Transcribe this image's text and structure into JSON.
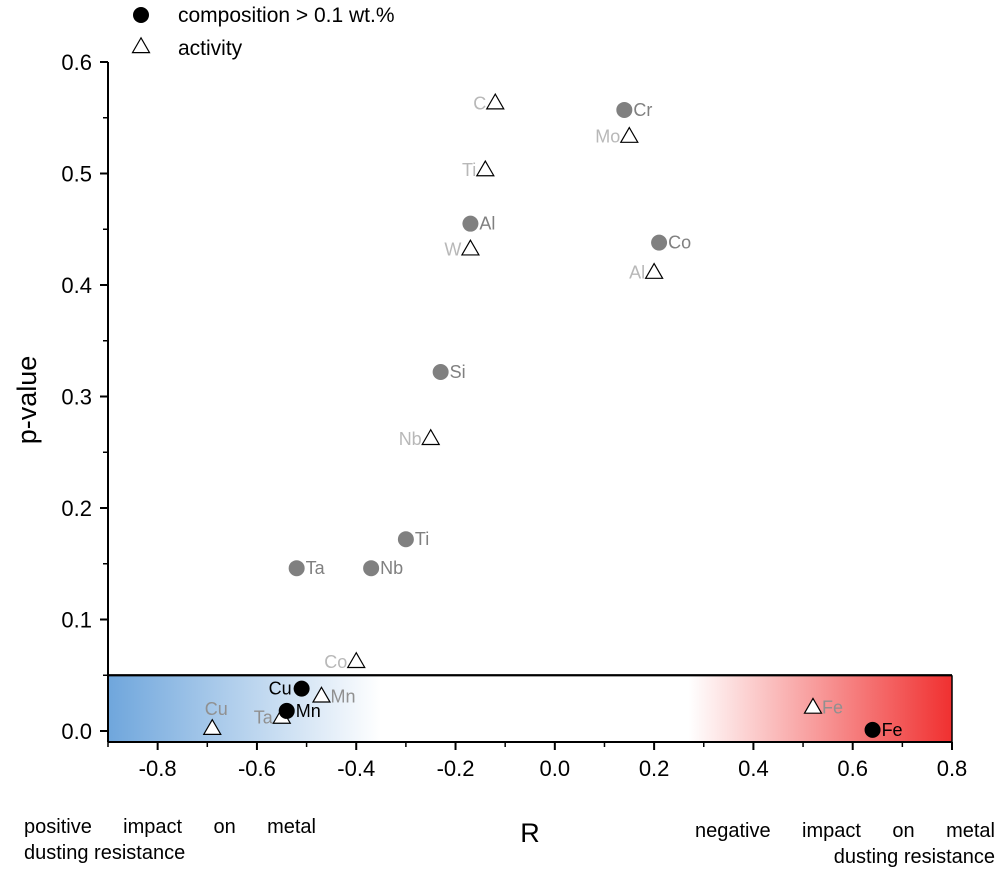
{
  "chart_data": {
    "type": "scatter",
    "xlabel": "R",
    "ylabel": "p-value",
    "xlim": [
      -0.9,
      0.8
    ],
    "ylim": [
      -0.01,
      0.6
    ],
    "xticks": [
      -0.8,
      -0.6,
      -0.4,
      -0.2,
      0.0,
      0.2,
      0.4,
      0.6,
      0.8
    ],
    "xtick_labels": [
      "-0.8",
      "-0.6",
      "-0.4",
      "-0.2",
      "0.0",
      "0.2",
      "0.4",
      "0.6",
      "0.8"
    ],
    "yticks": [
      0.0,
      0.1,
      0.2,
      0.3,
      0.4,
      0.5,
      0.6
    ],
    "ytick_labels": [
      "0.0",
      "0.1",
      "0.2",
      "0.3",
      "0.4",
      "0.5",
      "0.6"
    ],
    "significance_threshold": 0.05,
    "legend": {
      "placement": "top-left",
      "entries": [
        {
          "marker": "circle",
          "label": "composition > 0.1 wt.%"
        },
        {
          "marker": "triangle",
          "label": "activity"
        }
      ]
    },
    "series": [
      {
        "name": "composition > 0.1 wt.%",
        "marker": "circle",
        "points": [
          {
            "label": "Cr",
            "x": 0.14,
            "y": 0.557,
            "significant": false
          },
          {
            "label": "Co",
            "x": 0.21,
            "y": 0.438,
            "significant": false
          },
          {
            "label": "Al",
            "x": -0.17,
            "y": 0.455,
            "significant": false
          },
          {
            "label": "Si",
            "x": -0.23,
            "y": 0.322,
            "significant": false
          },
          {
            "label": "Ti",
            "x": -0.3,
            "y": 0.172,
            "significant": false
          },
          {
            "label": "Nb",
            "x": -0.37,
            "y": 0.146,
            "significant": false
          },
          {
            "label": "Ta",
            "x": -0.52,
            "y": 0.146,
            "significant": false
          },
          {
            "label": "Cu",
            "x": -0.51,
            "y": 0.038,
            "significant": true
          },
          {
            "label": "Mn",
            "x": -0.54,
            "y": 0.018,
            "significant": true
          },
          {
            "label": "Fe",
            "x": 0.64,
            "y": 0.001,
            "significant": true
          }
        ]
      },
      {
        "name": "activity",
        "marker": "triangle",
        "points": [
          {
            "label": "C",
            "x": -0.12,
            "y": 0.563,
            "significant": false
          },
          {
            "label": "Mo",
            "x": 0.15,
            "y": 0.533,
            "significant": false
          },
          {
            "label": "Ti",
            "x": -0.14,
            "y": 0.503,
            "significant": false
          },
          {
            "label": "W",
            "x": -0.17,
            "y": 0.432,
            "significant": false
          },
          {
            "label": "Al",
            "x": 0.2,
            "y": 0.411,
            "significant": false
          },
          {
            "label": "Nb",
            "x": -0.25,
            "y": 0.262,
            "significant": false
          },
          {
            "label": "Co",
            "x": -0.4,
            "y": 0.062,
            "significant": false
          },
          {
            "label": "Mn",
            "x": -0.47,
            "y": 0.031,
            "significant": true
          },
          {
            "label": "Ta",
            "x": -0.55,
            "y": 0.012,
            "significant": true
          },
          {
            "label": "Cu",
            "x": -0.69,
            "y": 0.002,
            "significant": true
          },
          {
            "label": "Fe",
            "x": 0.52,
            "y": 0.021,
            "significant": true
          }
        ]
      }
    ],
    "colors": {
      "significant_circle": "#000000",
      "nonsignificant_circle": "#808080",
      "circle_label_nonsig": "#808080",
      "triangle_label_nonsig": "#b8b8b8",
      "triangle_label_sig": "#909090",
      "gradient_positive": "#6fa6dc",
      "gradient_negative": "#f03030"
    }
  },
  "annotations": {
    "left_line1": "positive impact on metal",
    "left_line2": "dusting resistance",
    "right_line1": "negative impact on metal",
    "right_line2": "dusting resistance"
  }
}
